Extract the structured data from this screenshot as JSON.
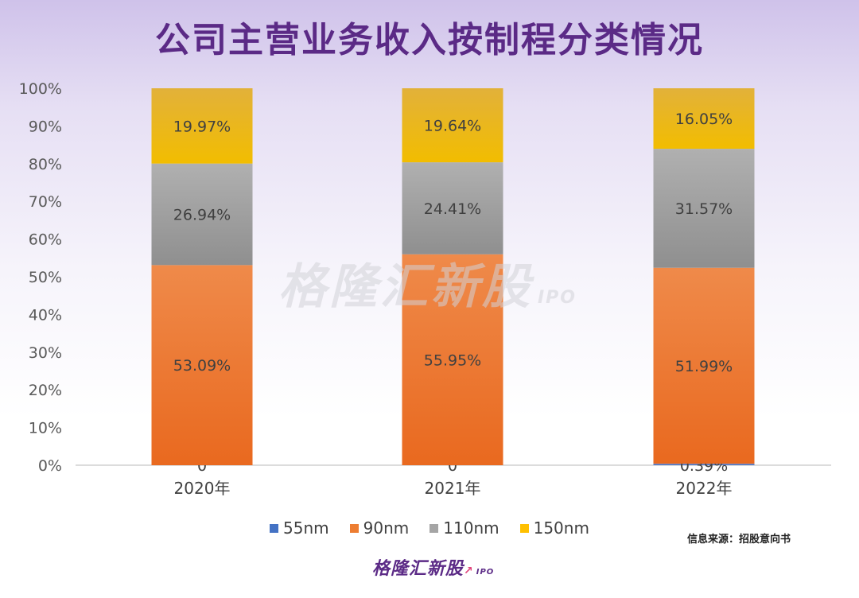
{
  "title": "公司主营业务收入按制程分类情况",
  "watermark": {
    "text": "格隆汇新股",
    "suffix": "IPO"
  },
  "source": "信息来源：招股意向书",
  "brand": {
    "text": "格隆汇新股",
    "suffix": "IPO"
  },
  "colors": {
    "55nm": "#4472c4",
    "90nm": "#ed7d31",
    "110nm": "#a5a5a5",
    "150nm": "#ffc000",
    "title": "#5b2a86"
  },
  "chart_data": {
    "type": "bar",
    "stacked": true,
    "percent": true,
    "categories": [
      "2020年",
      "2021年",
      "2022年"
    ],
    "series": [
      {
        "name": "55nm",
        "values": [
          0,
          0,
          0.39
        ],
        "labels": [
          "0",
          "0",
          "0.39%"
        ]
      },
      {
        "name": "90nm",
        "values": [
          53.09,
          55.95,
          51.99
        ],
        "labels": [
          "53.09%",
          "55.95%",
          "51.99%"
        ]
      },
      {
        "name": "110nm",
        "values": [
          26.94,
          24.41,
          31.57
        ],
        "labels": [
          "26.94%",
          "24.41%",
          "31.57%"
        ]
      },
      {
        "name": "150nm",
        "values": [
          19.97,
          19.64,
          16.05
        ],
        "labels": [
          "19.97%",
          "19.64%",
          "16.05%"
        ]
      }
    ],
    "yticks": [
      "0%",
      "10%",
      "20%",
      "30%",
      "40%",
      "50%",
      "60%",
      "70%",
      "80%",
      "90%",
      "100%"
    ],
    "ylim": [
      0,
      100
    ],
    "legend_position": "bottom",
    "grid": false
  }
}
